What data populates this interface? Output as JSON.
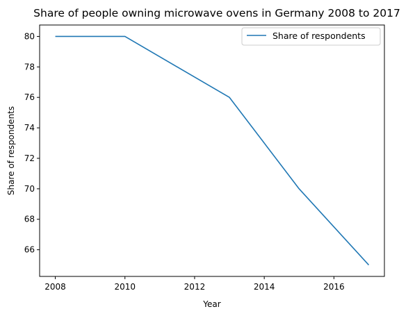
{
  "chart_data": {
    "type": "line",
    "title": "Share of people owning microwave ovens in Germany 2008 to 2017",
    "xlabel": "Year",
    "ylabel": "Share of respondents",
    "x": [
      2008,
      2010,
      2013,
      2015,
      2017
    ],
    "series": [
      {
        "name": "Share of respondents",
        "values": [
          80,
          80,
          76,
          70,
          65
        ],
        "color": "#1f77b4"
      }
    ],
    "xlim": [
      2007.55,
      2017.45
    ],
    "ylim": [
      64.25,
      80.75
    ],
    "xticks": [
      2008,
      2010,
      2012,
      2014,
      2016
    ],
    "yticks": [
      66,
      68,
      70,
      72,
      74,
      76,
      78,
      80
    ],
    "grid": false,
    "legend_position": "top-right"
  }
}
